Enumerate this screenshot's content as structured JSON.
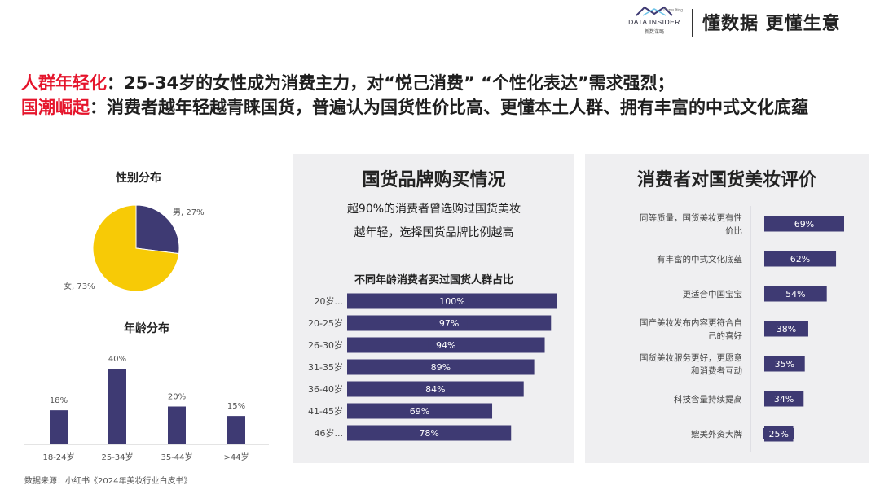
{
  "header": {
    "brand_name": "DATA INSIDER",
    "brand_sub": "新数谋略",
    "brand_tag": "Consulting",
    "slogan": "懂数据 更懂生意"
  },
  "headline": {
    "line1_key": "人群年轻化",
    "line1_text": "：25-34岁的女性成为消费主力，对“悦己消费” “个性化表达”需求强烈；",
    "line2_key": "国潮崛起",
    "line2_text": "：消费者越年轻越青睐国货，普遍认为国货性价比高、更懂本土人群、拥有丰富的中式文化底蕴"
  },
  "source": "数据来源：小红书《2024年美妆行业白皮书》",
  "colors": {
    "accent_red": "#e5142b",
    "bar": "#3e3a73",
    "pie_female": "#f7ca06",
    "pie_male": "#3e3a73",
    "panel_bg": "#efeff1"
  },
  "chart_data": [
    {
      "type": "pie",
      "title": "性别分布",
      "categories": [
        "男",
        "女"
      ],
      "values": [
        27,
        73
      ],
      "labels": [
        "男, 27%",
        "女, 73%"
      ]
    },
    {
      "type": "bar",
      "title": "年龄分布",
      "categories": [
        "18-24岁",
        "25-34岁",
        "35-44岁",
        ">44岁"
      ],
      "values": [
        18,
        40,
        20,
        15
      ],
      "value_labels": [
        "18%",
        "40%",
        "20%",
        "15%"
      ],
      "ylim": [
        0,
        40
      ]
    },
    {
      "type": "bar",
      "orientation": "horizontal",
      "panel_title": "国货品牌购买情况",
      "panel_subtitle": [
        "超90%的消费者曾选购过国货美妆",
        "越年轻，选择国货品牌比例越高"
      ],
      "title": "不同年龄消费者买过国货人群占比",
      "categories": [
        "20岁...",
        "20-25岁",
        "26-30岁",
        "31-35岁",
        "36-40岁",
        "41-45岁",
        "46岁..."
      ],
      "values": [
        100,
        97,
        94,
        89,
        84,
        69,
        78
      ],
      "value_labels": [
        "100%",
        "97%",
        "94%",
        "89%",
        "84%",
        "69%",
        "78%"
      ],
      "xlim": [
        0,
        100
      ]
    },
    {
      "type": "bar",
      "orientation": "horizontal",
      "panel_title": "消费者对国货美妆评价",
      "categories": [
        [
          "同等质量，国货美妆更有性",
          "价比"
        ],
        [
          "有丰富的中式文化底蕴"
        ],
        [
          "更适合中国宝宝"
        ],
        [
          "国产美妆发布内容更符合自",
          "己的喜好"
        ],
        [
          "国货美妆服务更好，更愿意",
          "和消费者互动"
        ],
        [
          "科技含量持续提高"
        ],
        [
          "媲美外资大牌"
        ]
      ],
      "values": [
        69,
        62,
        54,
        38,
        35,
        34,
        25
      ],
      "value_labels": [
        "69%",
        "62%",
        "54%",
        "38%",
        "35%",
        "34%",
        "25%"
      ],
      "xlim": [
        0,
        69
      ]
    }
  ]
}
